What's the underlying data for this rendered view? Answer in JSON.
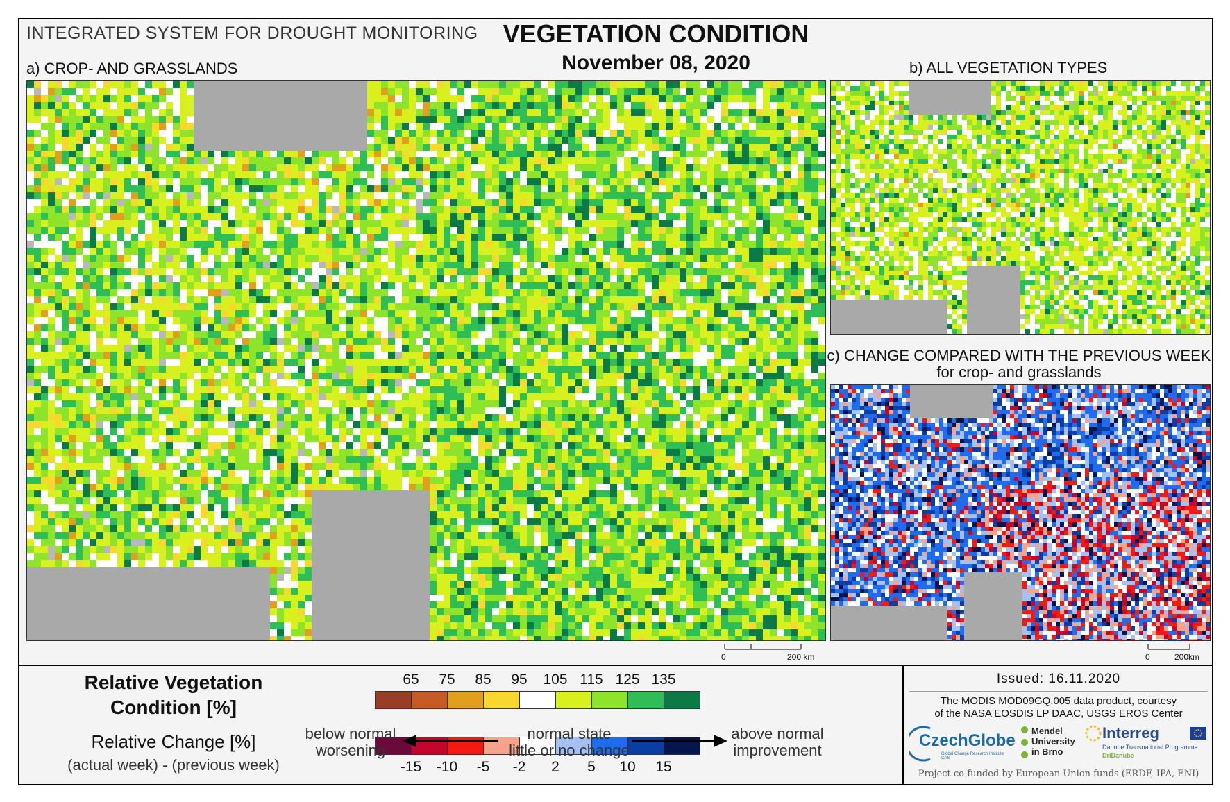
{
  "header": {
    "system_title": "INTEGRATED SYSTEM FOR DROUGHT MONITORING",
    "main_title": "VEGETATION CONDITION",
    "date": "November 08, 2020"
  },
  "panels": {
    "a": {
      "label": "a) CROP- AND GRASSLANDS",
      "scale_zero": "0",
      "scale_end": "200 km"
    },
    "b": {
      "label": "b) ALL VEGETATION TYPES"
    },
    "c": {
      "label": "c) CHANGE COMPARED WITH THE PREVIOUS WEEK",
      "sublabel": "for crop- and grasslands",
      "scale_zero": "0",
      "scale_end": "200km"
    }
  },
  "legend": {
    "rvc_title_line1": "Relative Vegetation",
    "rvc_title_line2": "Condition [%]",
    "rc_title": "Relative Change [%]",
    "rc_note": "(actual week) - (previous week)",
    "rvc_ticks": [
      "65",
      "75",
      "85",
      "95",
      "105",
      "115",
      "125",
      "135"
    ],
    "rvc_colors": [
      "#9a3d27",
      "#c85a26",
      "#e0a01e",
      "#f6d82e",
      "#ffffff",
      "#d8f01e",
      "#8ee42a",
      "#2fbd55",
      "#0b7a47"
    ],
    "rc_ticks": [
      "-15",
      "-10",
      "-5",
      "-2",
      "2",
      "5",
      "10",
      "15"
    ],
    "rc_colors": [
      "#6b0a3a",
      "#c4062c",
      "#f21a12",
      "#f5a38a",
      "#ffffff",
      "#a6c0f2",
      "#1f6cf0",
      "#0a3ea6",
      "#06154d"
    ],
    "left_desc_line1": "below normal",
    "left_desc_line2": "worsening",
    "center_desc_line1": "normal state",
    "center_desc_line2": "little or no change",
    "right_desc_line1": "above normal",
    "right_desc_line2": "improvement"
  },
  "credits": {
    "issued": "Issued: 16.11.2020",
    "source_line1": "The MODIS MOD09GQ.005 data product, courtesy",
    "source_line2": "of the NASA EOSDIS LP DAAC, USGS EROS Center",
    "czechglobe": "CzechGlobe",
    "czechglobe_sub": "Global Change Research Institute CAS",
    "mendel_line1": "Mendel",
    "mendel_line2": "University",
    "mendel_line3": "in Brno",
    "interreg": "Interreg",
    "interreg_sub": "Danube Transnational Programme",
    "dridanube": "DriDanube",
    "funding": "Project co-funded by European Union funds (ERDF, IPA, ENI)"
  }
}
